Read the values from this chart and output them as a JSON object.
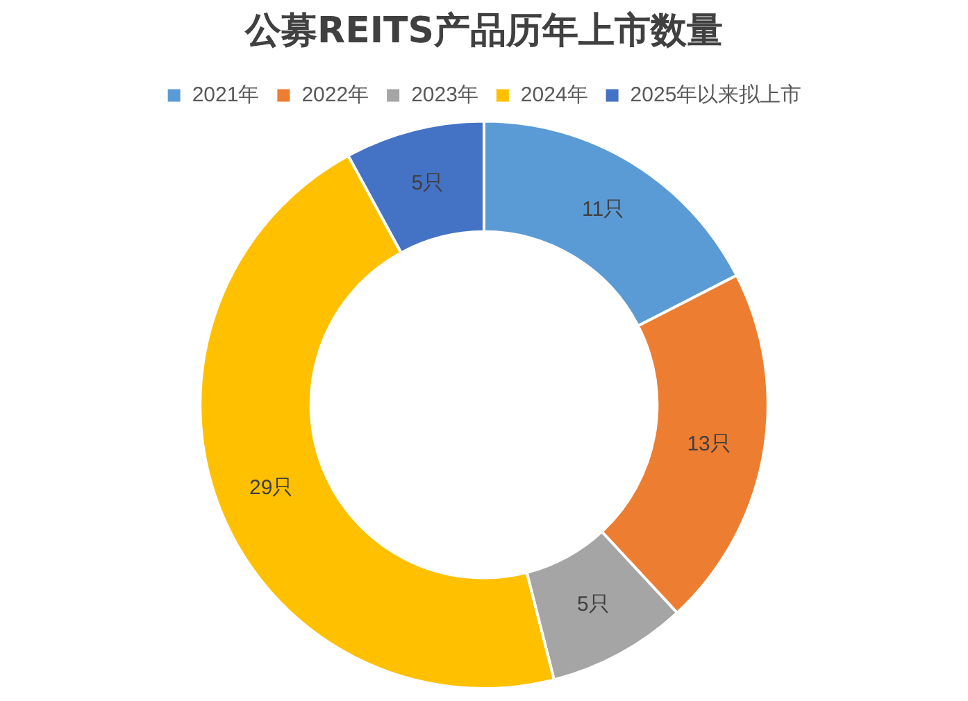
{
  "chart_data": {
    "type": "donut",
    "title": "公募REITS产品历年上市数量",
    "categories": [
      "2021年",
      "2022年",
      "2023年",
      "2024年",
      "2025年以来拟上市"
    ],
    "values": [
      11,
      13,
      5,
      29,
      5
    ],
    "colors": [
      "#5b9bd5",
      "#ed7d31",
      "#a5a5a5",
      "#ffc000",
      "#4472c4"
    ],
    "value_labels": [
      "11只",
      "13只",
      "5只",
      "29只",
      "5只"
    ],
    "legend": "top"
  }
}
